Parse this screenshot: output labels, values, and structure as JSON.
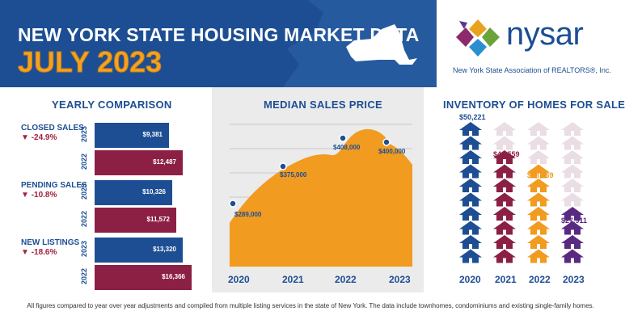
{
  "header": {
    "title_line1": "NEW YORK STATE HOUSING MARKET DATA",
    "title_line2": "JULY 2023"
  },
  "logo": {
    "name": "nysar",
    "subtitle": "New York State Association of REALTORS®, Inc."
  },
  "yearly_comparison": {
    "title": "YEARLY COMPARISON",
    "metrics": [
      {
        "label": "CLOSED SALES",
        "change": "-24.9%",
        "rows": [
          {
            "year": "2023",
            "value": "9,381"
          },
          {
            "year": "2022",
            "value": "12,487"
          }
        ]
      },
      {
        "label": "PENDING SALES",
        "change": "-10.8%",
        "rows": [
          {
            "year": "2023",
            "value": "10,326"
          },
          {
            "year": "2022",
            "value": "11,572"
          }
        ]
      },
      {
        "label": "NEW LISTINGS",
        "change": "-18.6%",
        "rows": [
          {
            "year": "2023",
            "value": "13,320"
          },
          {
            "year": "2022",
            "value": "16,366"
          }
        ]
      }
    ]
  },
  "median_price": {
    "title": "MEDIAN SALES PRICE",
    "labels": [
      "$289,000",
      "$375,000",
      "$408,000",
      "$400,000"
    ],
    "years": [
      "2020",
      "2021",
      "2022",
      "2023"
    ]
  },
  "inventory": {
    "title": "INVENTORY OF HOMES FOR SALE",
    "labels": [
      "50,221",
      "42,559",
      "38,969",
      "27,911"
    ],
    "years": [
      "2020",
      "2021",
      "2022",
      "2023"
    ]
  },
  "footer": "All figures compared to year over year adjustments and compiled from multiple listing services in the state of New York.  The data include townhomes, condominiums and existing single-family homes.",
  "colors": {
    "navy": "#1d4e93",
    "maroon": "#8c2044",
    "orange": "#f19b20",
    "purple": "#5a2a82",
    "pale": "#eadde4"
  },
  "chart_data": [
    {
      "type": "bar",
      "title": "YEARLY COMPARISON",
      "categories": [
        "CLOSED SALES",
        "PENDING SALES",
        "NEW LISTINGS"
      ],
      "series": [
        {
          "name": "2023",
          "values": [
            9381,
            10326,
            13320
          ]
        },
        {
          "name": "2022",
          "values": [
            12487,
            11572,
            16366
          ]
        }
      ]
    },
    {
      "type": "area",
      "title": "MEDIAN SALES PRICE",
      "x": [
        "2020",
        "2021",
        "2022",
        "2023"
      ],
      "values": [
        289000,
        375000,
        408000,
        400000
      ]
    },
    {
      "type": "bar",
      "title": "INVENTORY OF HOMES FOR SALE",
      "categories": [
        "2020",
        "2021",
        "2022",
        "2023"
      ],
      "values": [
        50221,
        42559,
        38969,
        27911
      ]
    }
  ]
}
